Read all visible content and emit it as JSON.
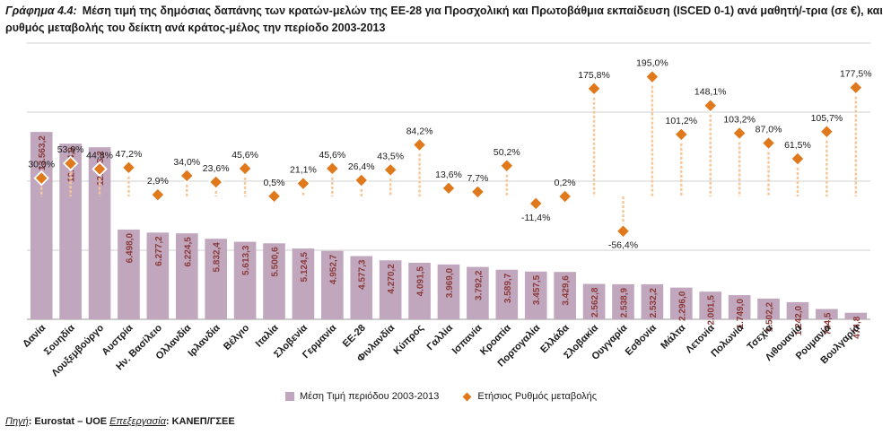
{
  "header": {
    "tag": "Γράφημα 4.4:",
    "text": "Μέση τιμή της δημόσιας δαπάνης των κρατών-μελών της ΕΕ-28 για Προσχολική και Πρωτοβάθμια εκπαίδευση (ISCED 0-1) ανά μαθητή/-τρια (σε €), και ρυθμός μεταβολής του δείκτη ανά κράτος-μέλος την περίοδο 2003-2013"
  },
  "source": {
    "source_label": "Πηγή",
    "source_value": ": Eurostat – UOE ",
    "processing_label": "Επεξεργασία",
    "processing_value": ": ΚΑΝΕΠ/ΓΣΕΕ"
  },
  "colors": {
    "bar": "#c0a7bd",
    "marker": "#e0791c",
    "marker_stroke": "#ffffff",
    "drop_line": "#f5c79a",
    "grid": "#d0d0d0",
    "bar_label": "#8b3a3a"
  },
  "chart_data": {
    "type": "bar",
    "categories": [
      "Δανία",
      "Σουηδία",
      "Λουξεμβούργο",
      "Αυστρία",
      "Ην. Βασίλειο",
      "Ολλανδία",
      "Ιρλανδία",
      "Βέλγιο",
      "Ιταλία",
      "Σλοβενία",
      "Γερμανία",
      "ΕΕ-28",
      "Φινλανδία",
      "Κύπρος",
      "Γαλλία",
      "Ισπανία",
      "Κροατία",
      "Πορτογαλία",
      "Ελλάδα",
      "Σλοβακία",
      "Ουγγαρία",
      "Εσθονία",
      "Μάλτα",
      "Λετονία",
      "Πολωνία",
      "Τσεχία",
      "Λιθουανία",
      "Ρουμανία",
      "Βουλγαρία"
    ],
    "series": [
      {
        "name": "Μέση Τιμή περιόδου 2003-2013",
        "values": [
          13563.2,
          12714.9,
          12455.2,
          6498.0,
          6277.2,
          6224.5,
          5832.4,
          5613.3,
          5500.6,
          5124.5,
          4952.7,
          4577.3,
          4270.2,
          4091.5,
          3969.0,
          3792.2,
          3589.7,
          3457.5,
          3429.6,
          2562.8,
          2538.9,
          2532.2,
          2296.0,
          2001.5,
          1749.0,
          1502.2,
          1242.0,
          744.5,
          474.8
        ],
        "labels": [
          "13.563,2",
          "12.714,9",
          "12.455,2",
          "6.498,0",
          "6.277,2",
          "6.224,5",
          "5.832,4",
          "5.613,3",
          "5.500,6",
          "5.124,5",
          "4.952,7",
          "4.577,3",
          "4.270,2",
          "4.091,5",
          "3.969,0",
          "3.792,2",
          "3.589,7",
          "3.457,5",
          "3.429,6",
          "2.562,8",
          "2.538,9",
          "2.532,2",
          "2.296,0",
          "2.001,5",
          "1.749,0",
          "1.502,2",
          "1.242,0",
          "744,5",
          "474,8"
        ]
      },
      {
        "name": "Ετήσιος Ρυθμός μεταβολής",
        "values": [
          30.0,
          53.9,
          44.8,
          47.2,
          2.9,
          34.0,
          23.6,
          45.6,
          0.5,
          21.1,
          45.6,
          26.4,
          43.5,
          84.2,
          13.6,
          7.7,
          50.2,
          -11.4,
          0.2,
          175.8,
          -56.4,
          195.0,
          101.2,
          148.1,
          103.2,
          87.0,
          61.5,
          105.7,
          177.5
        ],
        "labels": [
          "30,0%",
          "53,9%",
          "44,8%",
          "47,2%",
          "2,9%",
          "34,0%",
          "23,6%",
          "45,6%",
          "0,5%",
          "21,1%",
          "45,6%",
          "26,4%",
          "43,5%",
          "84,2%",
          "13,6%",
          "7,7%",
          "50,2%",
          "-11,4%",
          "0,2%",
          "175,8%",
          "-56,4%",
          "195,0%",
          "101,2%",
          "148,1%",
          "103,2%",
          "87,0%",
          "61,5%",
          "105,7%",
          "177,5%"
        ]
      }
    ],
    "ylim": [
      0,
      20000
    ],
    "y2lim": [
      -200,
      250
    ],
    "grid": true,
    "legend": "bottom"
  }
}
